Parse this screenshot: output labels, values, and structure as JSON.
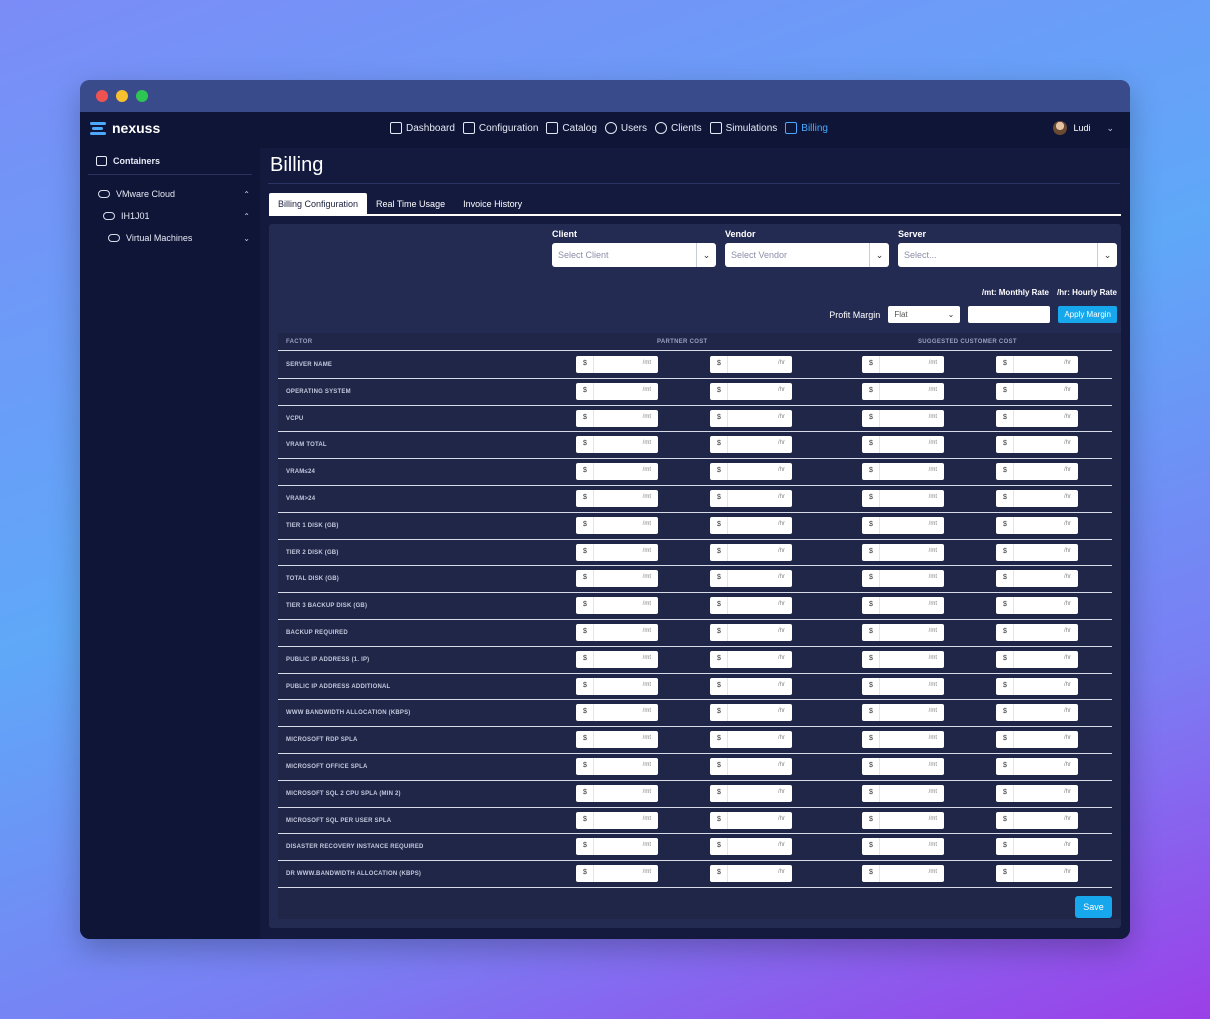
{
  "brand": {
    "name": "nexuss",
    "accent": "#4aa9ff"
  },
  "nav": {
    "items": [
      {
        "label": "Dashboard",
        "icon": "home-icon"
      },
      {
        "label": "Configuration",
        "icon": "gear-icon"
      },
      {
        "label": "Catalog",
        "icon": "grid-icon"
      },
      {
        "label": "Users",
        "icon": "user-icon"
      },
      {
        "label": "Clients",
        "icon": "users-icon"
      },
      {
        "label": "Simulations",
        "icon": "monitor-icon"
      },
      {
        "label": "Billing",
        "icon": "document-icon"
      }
    ],
    "active": "Billing",
    "user": {
      "name": "Ludi"
    }
  },
  "sidebar": {
    "header": "Containers",
    "tree": [
      {
        "label": "VMware Cloud",
        "level": 0
      },
      {
        "label": "IH1J01",
        "level": 1
      },
      {
        "label": "Virtual Machines",
        "level": 2
      }
    ]
  },
  "page": {
    "title": "Billing"
  },
  "tabs": [
    {
      "label": "Billing Configuration",
      "active": true
    },
    {
      "label": "Real Time Usage",
      "active": false
    },
    {
      "label": "Invoice History",
      "active": false
    }
  ],
  "filters": {
    "client": {
      "label": "Client",
      "placeholder": "Select Client"
    },
    "vendor": {
      "label": "Vendor",
      "placeholder": "Select Vendor"
    },
    "server": {
      "label": "Server",
      "placeholder": "Select..."
    }
  },
  "rates": {
    "monthly": "/mt: Monthly Rate",
    "hourly": "/hr: Hourly Rate"
  },
  "margin": {
    "label": "Profit Margin",
    "type": "Flat",
    "apply_label": "Apply Margin"
  },
  "table": {
    "headers": {
      "factor": "FACTOR",
      "partner": "PARTNER COST",
      "customer": "SUGGESTED CUSTOMER COST"
    },
    "currency": "$",
    "unit_monthly": "/mt",
    "unit_hourly": "/hr",
    "factors": [
      "SERVER NAME",
      "OPERATING SYSTEM",
      "VCPU",
      "VRAM TOTAL",
      "VRAM≤24",
      "VRAM>24",
      "TIER 1 DISK (GB)",
      "TIER 2 DISK (GB)",
      "TOTAL DISK (GB)",
      "TIER 3 BACKUP DISK (GB)",
      "BACKUP REQUIRED",
      "PUBLIC IP ADDRESS (1. IP)",
      "PUBLIC IP ADDRESS ADDITIONAL",
      "WWW BANDWIDTH ALLOCATION (KBPS)",
      "MICROSOFT RDP SPLA",
      "MICROSOFT OFFICE SPLA",
      "MICROSOFT SQL 2 CPU SPLA (MIN 2)",
      "MICROSOFT SQL PER USER SPLA",
      "DISASTER RECOVERY INSTANCE REQUIRED",
      "DR WWW.BANDWIDTH ALLOCATION (KBPS)"
    ]
  },
  "actions": {
    "save_label": "Save"
  }
}
